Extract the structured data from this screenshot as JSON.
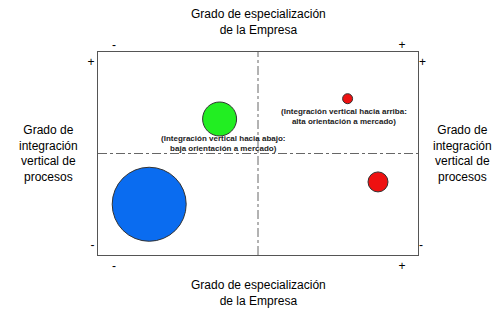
{
  "chart_data": {
    "type": "bubble",
    "x": [
      1.6,
      3.8,
      7.8,
      8.75
    ],
    "y": [
      2.5,
      6.7,
      7.7,
      3.6
    ],
    "sizes": [
      74,
      34,
      10,
      20
    ],
    "colors": [
      "#0a6cf0",
      "#22ee22",
      "#ee1111",
      "#ee1111"
    ],
    "xlim": [
      0,
      10
    ],
    "ylim": [
      0,
      10
    ],
    "xticks": [
      {
        "value": 0.5,
        "label": "-"
      },
      {
        "value": 9.5,
        "label": "+"
      }
    ],
    "yticks": [
      {
        "value": 0.5,
        "label": "-"
      },
      {
        "value": 9.5,
        "label": "+"
      }
    ],
    "grid": false,
    "quadrant_lines": {
      "x": 5,
      "y": 5
    },
    "axis_labels": {
      "top": [
        "Grado de especialización",
        "de la Empresa"
      ],
      "bottom": [
        "Grado de especialización",
        "de la Empresa"
      ],
      "left": [
        "Grado de",
        "integración",
        "vertical de",
        "procesos"
      ],
      "right": [
        "Grado de",
        "integración",
        "vertical de",
        "procesos"
      ]
    },
    "annotations": [
      {
        "x": 3.9,
        "y": 5.5,
        "text": [
          "(Integración vertical hacia abajo:",
          "baja orientación a mercado)"
        ]
      },
      {
        "x": 7.7,
        "y": 6.8,
        "text": [
          "(Integración vertical hacia arriba:",
          "alta orientación a mercado)"
        ]
      }
    ]
  }
}
